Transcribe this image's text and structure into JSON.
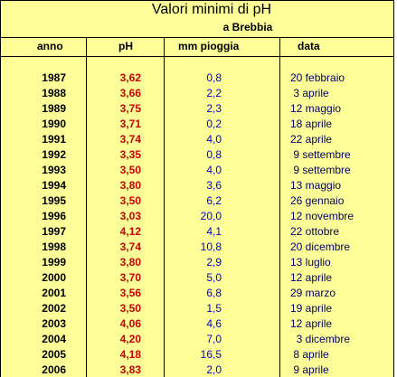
{
  "title": "Valori minimi di pH",
  "subtitle": "a Brebbia",
  "headers": {
    "anno": "anno",
    "ph": "pH",
    "mm": "mm pioggia",
    "data": "data"
  },
  "rows": [
    {
      "anno": "1987",
      "ph": "3,62",
      "mm": "0,8",
      "data": "20 febbraio"
    },
    {
      "anno": "1988",
      "ph": "3,66",
      "mm": "2,2",
      "data": " 3 aprile"
    },
    {
      "anno": "1989",
      "ph": "3,75",
      "mm": "2,3",
      "data": "12 maggio"
    },
    {
      "anno": "1990",
      "ph": "3,71",
      "mm": "0,2",
      "data": "18 aprile"
    },
    {
      "anno": "1991",
      "ph": "3,74",
      "mm": "4,0",
      "data": "22 aprile"
    },
    {
      "anno": "1992",
      "ph": "3,35",
      "mm": "0,8",
      "data": " 9 settembre"
    },
    {
      "anno": "1993",
      "ph": "3,50",
      "mm": "4,0",
      "data": " 9 settembre"
    },
    {
      "anno": "1994",
      "ph": "3,80",
      "mm": "3,6",
      "data": "13 maggio"
    },
    {
      "anno": "1995",
      "ph": "3,50",
      "mm": "6,2",
      "data": "26 gennaio"
    },
    {
      "anno": "1996",
      "ph": "3,03",
      "mm": "20,0",
      "data": "12 novembre"
    },
    {
      "anno": "1997",
      "ph": "4,12",
      "mm": "4,1",
      "data": "22 ottobre"
    },
    {
      "anno": "1998",
      "ph": "3,74",
      "mm": "10,8",
      "data": "20 dicembre"
    },
    {
      "anno": "1999",
      "ph": "3,80",
      "mm": "2,9",
      "data": "13 luglio"
    },
    {
      "anno": "2000",
      "ph": "3,70",
      "mm": "5,0",
      "data": "12 aprile"
    },
    {
      "anno": "2001",
      "ph": "3,56",
      "mm": "6,8",
      "data": "29 marzo"
    },
    {
      "anno": "2002",
      "ph": "3,50",
      "mm": "1,5",
      "data": "19 aprile"
    },
    {
      "anno": "2003",
      "ph": "4,06",
      "mm": "4,6",
      "data": "12 aprile"
    },
    {
      "anno": "2004",
      "ph": "4,20",
      "mm": "7,0",
      "data": "  3 dicembre"
    },
    {
      "anno": "2005",
      "ph": "4,18",
      "mm": "16,5",
      "data": " 8 aprile"
    },
    {
      "anno": "2006",
      "ph": "3,83",
      "mm": "2,0",
      "data": " 9 aprile"
    }
  ],
  "colors": {
    "background": "#ffff99",
    "ph": "#cc0000",
    "mm": "#0000cc",
    "data": "#000066"
  }
}
